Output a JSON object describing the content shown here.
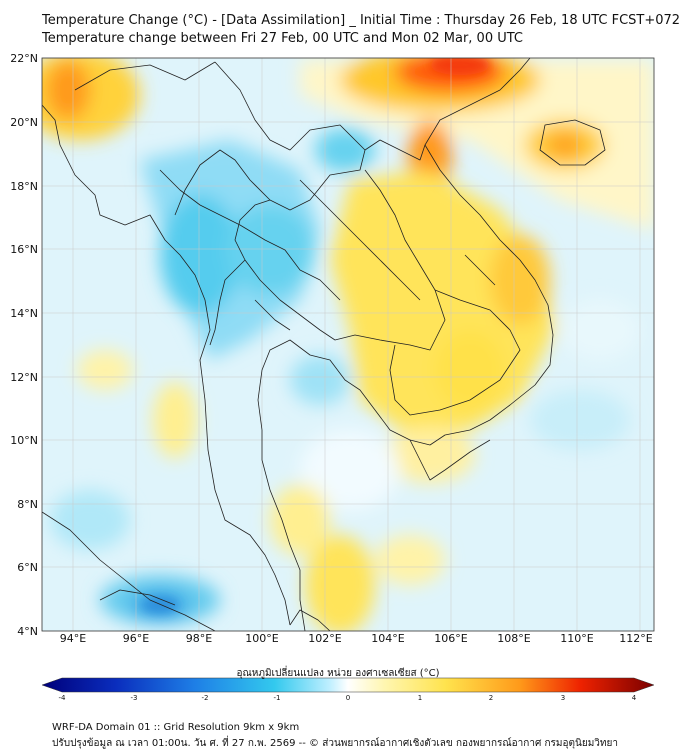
{
  "header": {
    "title_line1": "Temperature Change (°C) - [Data Assimilation] _ Initial Time : Thursday 26 Feb, 18 UTC FCST+072",
    "title_line2": "Temperature change between Fri 27 Feb, 00 UTC and Mon 02 Mar, 00 UTC"
  },
  "map": {
    "lat_labels": [
      "22°N",
      "20°N",
      "18°N",
      "16°N",
      "14°N",
      "12°N",
      "10°N",
      "8°N",
      "6°N",
      "4°N"
    ],
    "lon_labels": [
      "94°E",
      "96°E",
      "98°E",
      "100°E",
      "102°E",
      "104°E",
      "106°E",
      "108°E",
      "110°E",
      "112°E"
    ],
    "lat_range": [
      4,
      22
    ],
    "lon_range": [
      93,
      113
    ]
  },
  "colorbar": {
    "title": "อุณหภูมิเปลี่ยนแปลง หน่วย องศาเซลเซียส (°C)",
    "ticks": [
      "-4",
      "-3",
      "-2",
      "-1",
      "0",
      "1",
      "2",
      "3",
      "4"
    ],
    "colors": {
      "cold_extreme": "#00007a",
      "cold": "#1e5fd6",
      "cool": "#33c9ee",
      "neutral": "#ffffff",
      "warm": "#ffe34d",
      "hot": "#ff8a1a",
      "hot_extreme": "#7a0000"
    }
  },
  "footer": {
    "line1": "WRF-DA Domain 01 :: Grid Resolution 9km x 9km",
    "line2": "ปรับปรุงข้อมูล ณ เวลา 01:00น. วัน ศ. ที่ 27 ก.พ. 2569 -- © ส่วนพยากรณ์อากาศเชิงตัวเลข กองพยากรณ์อากาศ กรมอุตุนิยมวิทยา"
  }
}
